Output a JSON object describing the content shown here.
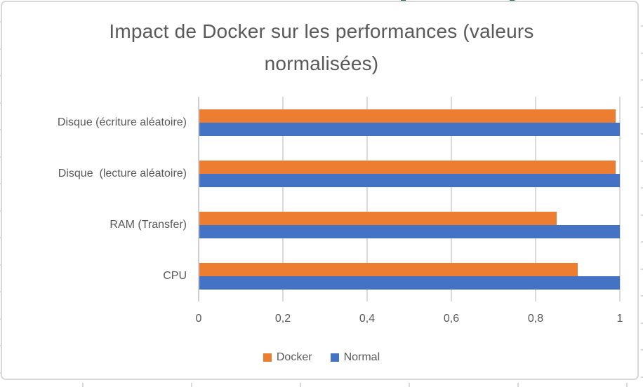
{
  "chart_data": {
    "type": "bar",
    "orientation": "horizontal",
    "title": "Impact de Docker sur les performances (valeurs normalisées)",
    "categories": [
      "Disque (écriture aléatoire)",
      "Disque  (lecture aléatoire)",
      "RAM (Transfer)",
      "CPU"
    ],
    "category_order": "top-to-bottom",
    "series": [
      {
        "name": "Docker",
        "color": "#ED7D31",
        "values": [
          0.99,
          0.99,
          0.85,
          0.9
        ]
      },
      {
        "name": "Normal",
        "color": "#4472C4",
        "values": [
          1.0,
          1.0,
          1.0,
          1.0
        ]
      }
    ],
    "group_layout": "Docker bar above Normal bar in each category group",
    "xlim": [
      0,
      1
    ],
    "x_ticks": [
      {
        "value": 0,
        "label": "0"
      },
      {
        "value": 0.2,
        "label": "0,2"
      },
      {
        "value": 0.4,
        "label": "0,4"
      },
      {
        "value": 0.6,
        "label": "0,6"
      },
      {
        "value": 0.8,
        "label": "0,8"
      },
      {
        "value": 1,
        "label": "1"
      }
    ],
    "grid": true,
    "legend_position": "bottom"
  },
  "colors": {
    "title_text": "#595959",
    "axis_text": "#595959",
    "gridline": "#DADADA",
    "axis_line": "#CFCFCF",
    "chart_border": "#D8D8D8",
    "sheet_gridline": "#D9D9D9",
    "sheet_selection_green": "#217346"
  }
}
